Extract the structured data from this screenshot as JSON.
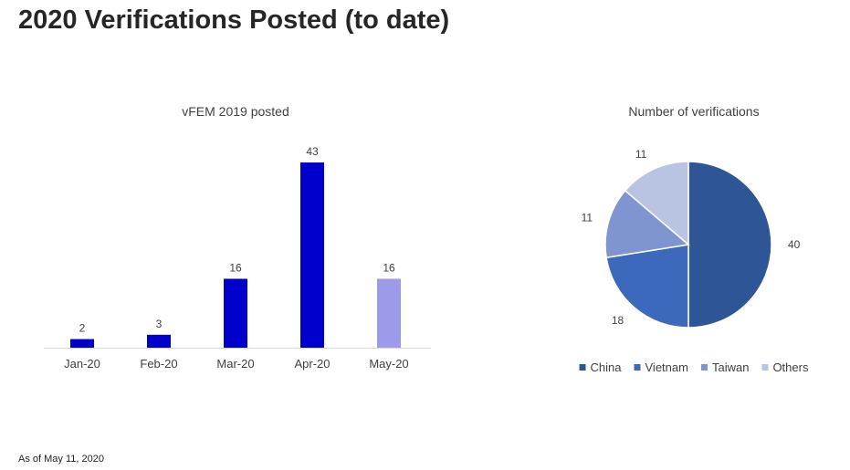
{
  "page": {
    "title": "2020 Verifications Posted (to date)",
    "footnote": "As of May 11, 2020"
  },
  "chart_data": [
    {
      "type": "bar",
      "title": "vFEM 2019 posted",
      "categories": [
        "Jan-20",
        "Feb-20",
        "Mar-20",
        "Apr-20",
        "May-20"
      ],
      "values": [
        2,
        3,
        16,
        43,
        16
      ],
      "colors": [
        "#0000cc",
        "#0000cc",
        "#0000cc",
        "#0000cc",
        "#9b9bea"
      ],
      "ylim": [
        0,
        50
      ],
      "grid": false,
      "data_labels": true
    },
    {
      "type": "pie",
      "title": "Number of verifications",
      "labels": [
        "China",
        "Vietnam",
        "Taiwan",
        "Others"
      ],
      "values": [
        40,
        18,
        11,
        11
      ],
      "colors": [
        "#2e5595",
        "#3c69bb",
        "#7f95cf",
        "#b9c4e2"
      ],
      "legend_position": "bottom",
      "data_labels": true
    }
  ]
}
